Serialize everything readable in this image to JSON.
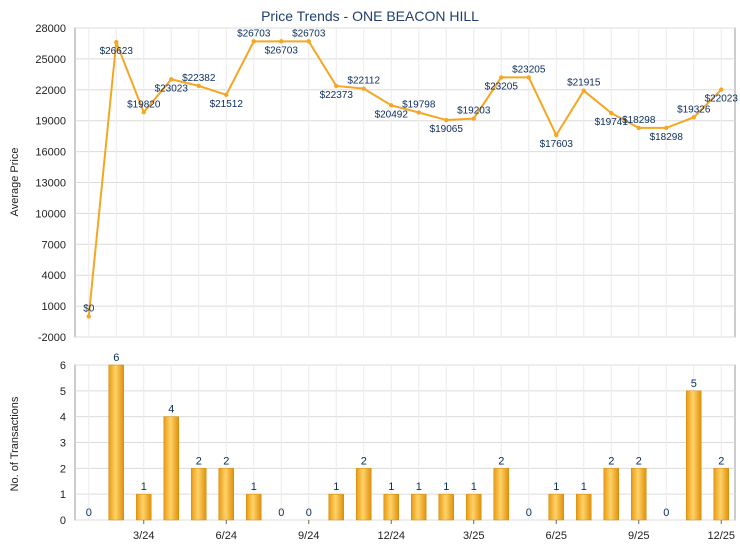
{
  "chart_data": [
    {
      "type": "line",
      "title": "Price Trends - ONE BEACON HILL",
      "ylabel": "Average Price",
      "ylim": [
        -2000,
        28000
      ],
      "yticks": [
        -2000,
        1000,
        4000,
        7000,
        10000,
        13000,
        16000,
        19000,
        22000,
        25000,
        28000
      ],
      "grid": true,
      "color": "#f5a623",
      "x": [
        "1/24",
        "2/24",
        "3/24",
        "4/24",
        "5/24",
        "6/24",
        "7/24",
        "8/24",
        "9/24",
        "10/24",
        "11/24",
        "12/24",
        "1/25",
        "2/25",
        "3/25",
        "4/25",
        "5/25",
        "6/25",
        "7/25",
        "8/25",
        "9/25",
        "10/25",
        "11/25",
        "12/25"
      ],
      "values": [
        0,
        26623,
        19820,
        23023,
        22382,
        21512,
        26703,
        26703,
        26703,
        22373,
        22112,
        20492,
        19798,
        19065,
        19203,
        23205,
        23205,
        17603,
        21915,
        19741,
        18298,
        18298,
        19326,
        22023
      ],
      "labels": [
        "$0",
        "$26623",
        "$19820",
        "$23023",
        "$22382",
        "$21512",
        "$26703",
        "$26703",
        "$26703",
        "$22373",
        "$22112",
        "$20492",
        "$19798",
        "$19065",
        "$19203",
        "$23205",
        "$23205",
        "$17603",
        "$21915",
        "$19741",
        "$18298",
        "$18298",
        "$19326",
        "$22023"
      ]
    },
    {
      "type": "bar",
      "ylabel": "No. of Transactions",
      "ylim": [
        0,
        6
      ],
      "yticks": [
        0,
        1,
        2,
        3,
        4,
        5,
        6
      ],
      "grid": true,
      "color": "#f0a820",
      "categories": [
        "1/24",
        "2/24",
        "3/24",
        "4/24",
        "5/24",
        "6/24",
        "7/24",
        "8/24",
        "9/24",
        "10/24",
        "11/24",
        "12/24",
        "1/25",
        "2/25",
        "3/25",
        "4/25",
        "5/25",
        "6/25",
        "7/25",
        "8/25",
        "9/25",
        "10/25",
        "11/25",
        "12/25"
      ],
      "values": [
        0,
        6,
        1,
        4,
        2,
        2,
        1,
        0,
        0,
        1,
        2,
        1,
        1,
        1,
        1,
        2,
        0,
        1,
        1,
        2,
        2,
        0,
        5,
        2
      ],
      "xticklabels": [
        "3/24",
        "6/24",
        "9/24",
        "12/24",
        "3/25",
        "6/25",
        "9/25",
        "12/25"
      ],
      "xtick_indices": [
        2,
        5,
        8,
        11,
        14,
        17,
        20,
        23
      ]
    }
  ]
}
